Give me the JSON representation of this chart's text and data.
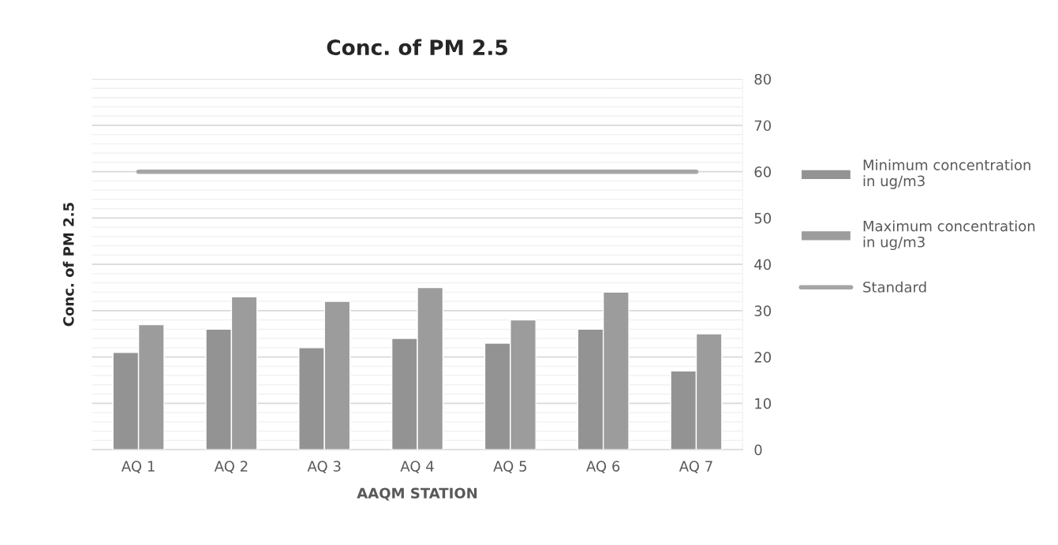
{
  "chart_data": {
    "type": "bar",
    "title": "Conc. of PM 2.5",
    "xlabel": "AAQM STATION",
    "ylabel": "Conc. of PM 2.5",
    "categories": [
      "AQ 1",
      "AQ 2",
      "AQ 3",
      "AQ 4",
      "AQ 5",
      "AQ 6",
      "AQ 7"
    ],
    "series": [
      {
        "name": "Minimum concentration in ug/m3",
        "color": "#939393",
        "values": [
          21,
          26,
          22,
          24,
          23,
          26,
          17
        ]
      },
      {
        "name": "Maximum concentration in ug/m3",
        "color": "#9c9c9c",
        "values": [
          27,
          33,
          32,
          35,
          28,
          34,
          25
        ]
      },
      {
        "name": "Standard",
        "type": "line",
        "color": "#a6a6a6",
        "values": [
          60,
          60,
          60,
          60,
          60,
          60,
          60
        ]
      }
    ],
    "ylim": [
      0,
      80
    ],
    "yticks": [
      0,
      10,
      20,
      30,
      40,
      50,
      60,
      70,
      80
    ],
    "grid": "y",
    "legend": "right"
  }
}
